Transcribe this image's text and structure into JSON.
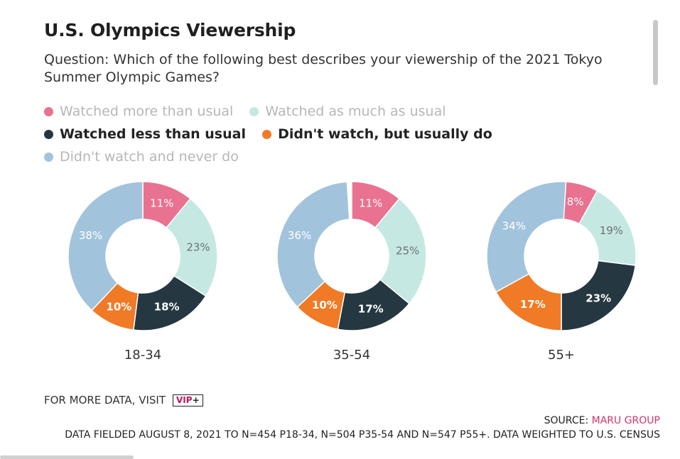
{
  "header": {
    "title": "U.S. Olympics Viewership",
    "subtitle": "Question: Which of the following best describes your viewership of the 2021 Tokyo Summer Olympic Games?"
  },
  "legend": [
    {
      "label": "Watched more than usual",
      "color": "#e8728f",
      "active": false
    },
    {
      "label": "Watched as much as usual",
      "color": "#c5e8e2",
      "active": false
    },
    {
      "label": "Watched less than usual",
      "color": "#253741",
      "active": true
    },
    {
      "label": "Didn't watch, but usually do",
      "color": "#f07a26",
      "active": true
    },
    {
      "label": "Didn't watch and never do",
      "color": "#a2c3dc",
      "active": false
    }
  ],
  "chart_data": {
    "type": "pie",
    "categories": [
      "18-34",
      "35-54",
      "55+"
    ],
    "series": [
      {
        "name": "Watched more than usual",
        "values": [
          11,
          11,
          8
        ]
      },
      {
        "name": "Watched as much as usual",
        "values": [
          23,
          25,
          19
        ]
      },
      {
        "name": "Watched less than usual",
        "values": [
          18,
          17,
          23
        ]
      },
      {
        "name": "Didn't watch, but usually do",
        "values": [
          10,
          10,
          17
        ]
      },
      {
        "name": "Didn't watch and never do",
        "values": [
          38,
          36,
          34
        ]
      }
    ],
    "title": "U.S. Olympics Viewership",
    "value_suffix": "%",
    "donut": true
  },
  "footer": {
    "more_data": "FOR MORE DATA, VISIT",
    "vip_label": "VIP",
    "vip_plus": "+",
    "source_label": "SOURCE:",
    "source_org": "MARU GROUP",
    "notes": "DATA FIELDED AUGUST 8, 2021 TO N=454 P18-34, N=504 P35-54 AND N=547 P55+. DATA WEIGHTED TO U.S. CENSUS"
  }
}
